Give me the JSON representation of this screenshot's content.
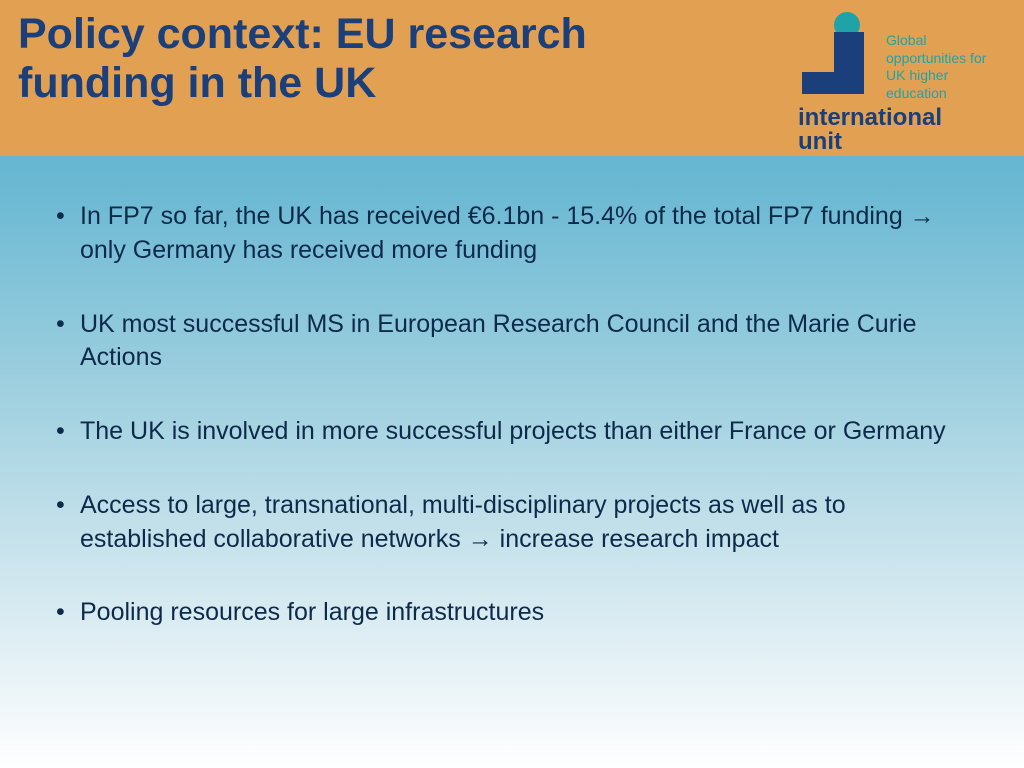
{
  "header": {
    "title": "Policy context: EU research funding in the UK",
    "background_color": "#e2a152",
    "title_color": "#1a3f7a",
    "title_fontsize": 43
  },
  "logo": {
    "tagline": "Global opportunities for UK higher education",
    "brand_line1": "international",
    "brand_line2": "unit",
    "dot_color": "#1fa3a8",
    "square_color": "#1a3f7a",
    "tagline_color": "#1fa3a8",
    "brand_color": "#1a3f7a"
  },
  "body": {
    "gradient_top": "#4ba8c9",
    "gradient_bottom": "#ffffff",
    "text_color": "#0e2a4a",
    "bullet_fontsize": 25,
    "bullets": [
      "In FP7 so far, the UK has received €6.1bn - 15.4% of the total FP7 funding → only Germany has received more funding",
      "UK most successful MS in European Research Council and the Marie Curie Actions",
      "The UK is involved in more successful projects than either France or Germany",
      "Access to large, transnational, multi-disciplinary projects as well as to established collaborative networks → increase research impact",
      "Pooling resources for large infrastructures"
    ]
  }
}
